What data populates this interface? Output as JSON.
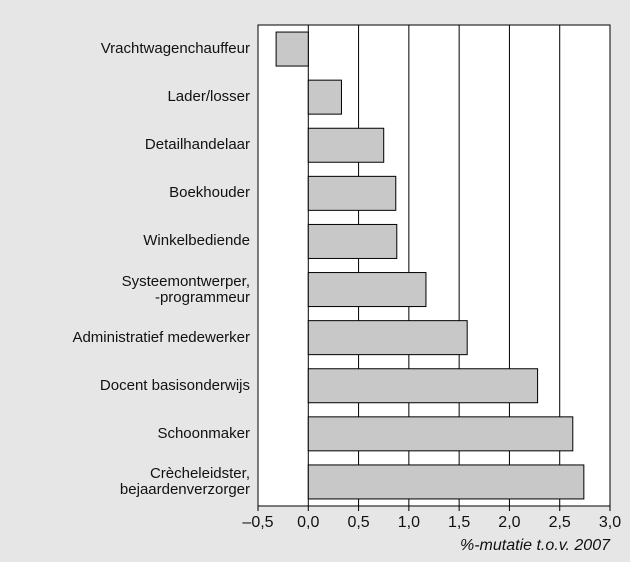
{
  "chart_data": {
    "type": "bar",
    "orientation": "horizontal",
    "categories": [
      "Vrachtwagenchauffeur",
      "Lader/losser",
      "Detailhandelaar",
      "Boekhouder",
      "Winkelbediende",
      "Systeemontwerper,\n-programmeur",
      "Administratief medewerker",
      "Docent basisonderwijs",
      "Schoonmaker",
      "Crècheleidster,\nbejaardenverzorger"
    ],
    "values": [
      -0.32,
      0.33,
      0.75,
      0.87,
      0.88,
      1.17,
      1.58,
      2.28,
      2.63,
      2.74
    ],
    "color": "#c8c8c8",
    "xlim": [
      -0.5,
      3.0
    ],
    "xticks": [
      {
        "value": -0.5,
        "label": "–0,5"
      },
      {
        "value": 0,
        "label": "0,0"
      },
      {
        "value": 0.5,
        "label": "0,5"
      },
      {
        "value": 1,
        "label": "1,0"
      },
      {
        "value": 1.5,
        "label": "1,5"
      },
      {
        "value": 2,
        "label": "2,0"
      },
      {
        "value": 2.5,
        "label": "2,5"
      },
      {
        "value": 3,
        "label": "3,0"
      }
    ],
    "xlabel": "%-mutatie t.o.v. 2007",
    "grid": true
  }
}
